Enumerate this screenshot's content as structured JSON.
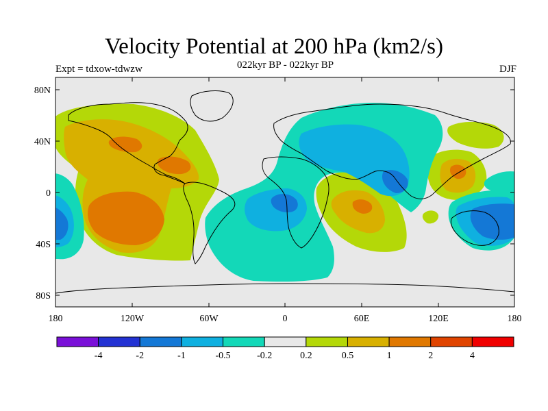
{
  "title": "Velocity Potential at 200 hPa (km2/s)",
  "subtitle": "022kyr BP - 022kyr BP",
  "left_label": "Expt = tdxow-tdwzw",
  "right_label": "DJF",
  "axes": {
    "x_ticks": [
      "180",
      "120W",
      "60W",
      "0",
      "60E",
      "120E",
      "180"
    ],
    "y_ticks": [
      "80N",
      "40N",
      "0",
      "40S",
      "80S"
    ]
  },
  "colorbar": {
    "labels": [
      "-4",
      "-2",
      "-1",
      "-0.5",
      "-0.2",
      "0.2",
      "0.5",
      "1",
      "2",
      "4"
    ],
    "colors": [
      "#7a10d8",
      "#2332d3",
      "#1478d6",
      "#0fb0e0",
      "#13d8b8",
      "#e8e8e8",
      "#b4d808",
      "#d8b000",
      "#e07800",
      "#e04400",
      "#f00000"
    ]
  },
  "map": {
    "background": "#e8e8e8",
    "projection": "cylindrical equidistant",
    "lon_range": [
      -180,
      180
    ],
    "lat_range": [
      -90,
      90
    ]
  }
}
